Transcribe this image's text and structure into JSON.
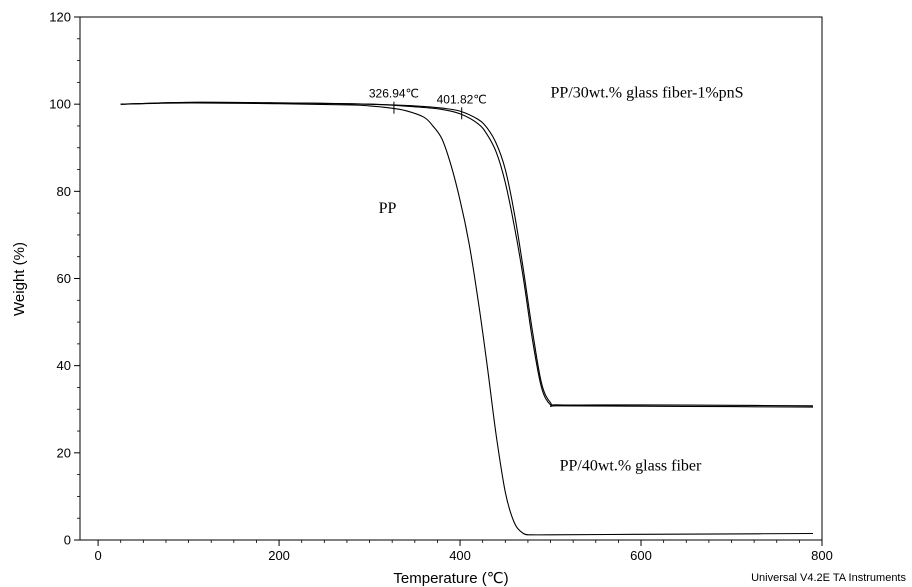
{
  "chart_data": {
    "type": "line",
    "xlabel": "Temperature (℃)",
    "ylabel": "Weight (%)",
    "xlim": [
      -20,
      800
    ],
    "ylim": [
      0,
      120
    ],
    "xticks": [
      0,
      200,
      400,
      600,
      800
    ],
    "yticks": [
      0,
      20,
      40,
      60,
      80,
      100,
      120
    ],
    "x_tick_labels": [
      "0",
      "200",
      "400",
      "600",
      "800"
    ],
    "y_tick_labels": [
      "0",
      "20",
      "40",
      "60",
      "80",
      "100",
      "120"
    ],
    "grid": false,
    "series": [
      {
        "key": "pp",
        "color": "#000000",
        "x": [
          25,
          100,
          200,
          280,
          300,
          320,
          340,
          360,
          370,
          380,
          390,
          400,
          410,
          420,
          430,
          440,
          450,
          460,
          470,
          480,
          500,
          600,
          700,
          790
        ],
        "y": [
          100,
          100.3,
          100.1,
          99.8,
          99.6,
          99.2,
          98.5,
          97,
          95,
          92,
          86,
          78,
          68,
          55,
          40,
          24,
          11,
          4,
          1.5,
          1.2,
          1.2,
          1.3,
          1.4,
          1.5
        ]
      },
      {
        "key": "pp_30gf_pns",
        "color": "#000000",
        "x": [
          25,
          100,
          200,
          300,
          350,
          380,
          400,
          420,
          430,
          440,
          450,
          460,
          470,
          480,
          490,
          500,
          510,
          600,
          700,
          790
        ],
        "y": [
          100,
          100.4,
          100.3,
          100,
          99.6,
          99.1,
          98.4,
          96.5,
          94.5,
          91,
          85,
          75,
          62,
          48,
          36,
          31.5,
          31,
          31,
          30.9,
          30.8
        ]
      },
      {
        "key": "pp_40gf",
        "color": "#000000",
        "x": [
          25,
          100,
          200,
          300,
          350,
          380,
          400,
          420,
          430,
          440,
          450,
          460,
          470,
          480,
          490,
          500,
          510,
          600,
          700,
          790
        ],
        "y": [
          100,
          100.4,
          100.3,
          100,
          99.4,
          98.8,
          97.8,
          95.5,
          93,
          89,
          82,
          72,
          60,
          46,
          35,
          31,
          30.8,
          30.7,
          30.6,
          30.5
        ]
      }
    ],
    "series_labels": [
      {
        "text": "PP",
        "x": 310,
        "y": 75
      },
      {
        "text": "PP/30wt.% glass fiber-1%pnS",
        "x": 500,
        "y": 101.5
      },
      {
        "text": "PP/40wt.% glass fiber",
        "x": 510,
        "y": 16
      }
    ],
    "markers": [
      {
        "label": "326.94℃",
        "x": 326.94,
        "y": 99.2
      },
      {
        "label": "401.82℃",
        "x": 401.82,
        "y": 97.9
      }
    ],
    "footer_note": "Universal V4.2E TA Instruments"
  }
}
